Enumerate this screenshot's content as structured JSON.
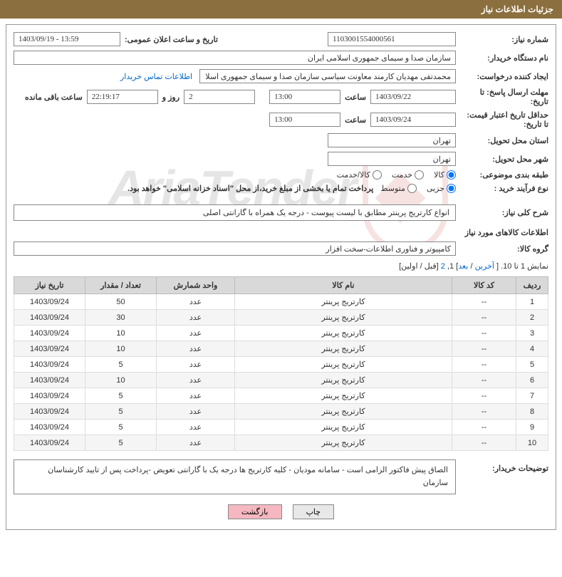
{
  "header": {
    "title": "جزئیات اطلاعات نیاز"
  },
  "fields": {
    "need_number_label": "شماره نیاز:",
    "need_number": "1103001554000561",
    "announce_label": "تاریخ و ساعت اعلان عمومی:",
    "announce_value": "1403/09/19 - 13:59",
    "buyer_org_label": "نام دستگاه خریدار:",
    "buyer_org": "سازمان صدا و سیمای جمهوری اسلامی ایران",
    "requester_label": "ایجاد کننده درخواست:",
    "requester": "محمدتقی مهدیان کارمند معاونت سیاسی سازمان صدا و سیمای جمهوری اسلا",
    "contact_link": "اطلاعات تماس خریدار",
    "deadline_send_label": "مهلت ارسال پاسخ: تا تاریخ:",
    "deadline_send_date": "1403/09/22",
    "time_label": "ساعت",
    "deadline_send_time": "13:00",
    "days_remaining": "2",
    "days_remaining_label": "روز و",
    "time_remaining": "22:19:17",
    "time_remaining_label": "ساعت باقی مانده",
    "min_valid_label": "حداقل تاریخ اعتبار قیمت: تا تاریخ:",
    "min_valid_date": "1403/09/24",
    "min_valid_time": "13:00",
    "delivery_province_label": "استان محل تحویل:",
    "delivery_province": "تهران",
    "delivery_city_label": "شهر محل تحویل:",
    "delivery_city": "تهران",
    "category_label": "طبقه بندی موضوعی:",
    "cat_goods": "کالا",
    "cat_service": "خدمت",
    "cat_goods_service": "کالا/خدمت",
    "purchase_type_label": "نوع فرآیند خرید :",
    "pt_minor": "جزیی",
    "pt_medium": "متوسط",
    "purchase_note": "پرداخت تمام یا بخشی از مبلغ خرید،از محل \"اسناد خزانه اسلامی\" خواهد بود.",
    "general_desc_label": "شرح کلی نیاز:",
    "general_desc": "انواع  کارتریج  پرینتر مطابق با لیست پیوست - درجه یک همراه با گارانتی اصلی",
    "goods_info_title": "اطلاعات کالاهای مورد نیاز",
    "goods_group_label": "گروه کالا:",
    "goods_group": "کامپیوتر و فناوری اطلاعات-سخت افزار",
    "pager_text1": "نمایش 1 تا 10. [ ",
    "pager_last": "آخرین",
    "pager_sep1": " / ",
    "pager_next": "بعد",
    "pager_mid": "] 1, ",
    "pager_p2": "2",
    "pager_text2": " [قبل / اولین]",
    "buyer_notes_label": "توضیحات خریدار:",
    "buyer_notes": "الصاق پیش فاکتور الزامی است - سامانه مودیان - کلیه کارتریج ها  درجه یک با گارانتی تعویض -پرداخت پس از تایید کارشناسان سازمان",
    "btn_print": "چاپ",
    "btn_back": "بازگشت"
  },
  "table": {
    "headers": {
      "row": "ردیف",
      "code": "کد کالا",
      "name": "نام کالا",
      "unit": "واحد شمارش",
      "qty": "تعداد / مقدار",
      "date": "تاریخ نیاز"
    },
    "rows": [
      {
        "n": "1",
        "code": "--",
        "name": "کارتریج پرینتر",
        "unit": "عدد",
        "qty": "50",
        "date": "1403/09/24"
      },
      {
        "n": "2",
        "code": "--",
        "name": "کارتریج پرینتر",
        "unit": "عدد",
        "qty": "30",
        "date": "1403/09/24"
      },
      {
        "n": "3",
        "code": "--",
        "name": "کارتریج پرینتر",
        "unit": "عدد",
        "qty": "10",
        "date": "1403/09/24"
      },
      {
        "n": "4",
        "code": "--",
        "name": "کارتریج پرینتر",
        "unit": "عدد",
        "qty": "10",
        "date": "1403/09/24"
      },
      {
        "n": "5",
        "code": "--",
        "name": "کارتریج پرینتر",
        "unit": "عدد",
        "qty": "5",
        "date": "1403/09/24"
      },
      {
        "n": "6",
        "code": "--",
        "name": "کارتریج پرینتر",
        "unit": "عدد",
        "qty": "10",
        "date": "1403/09/24"
      },
      {
        "n": "7",
        "code": "--",
        "name": "کارتریج پرینتر",
        "unit": "عدد",
        "qty": "5",
        "date": "1403/09/24"
      },
      {
        "n": "8",
        "code": "--",
        "name": "کارتریج پرینتر",
        "unit": "عدد",
        "qty": "5",
        "date": "1403/09/24"
      },
      {
        "n": "9",
        "code": "--",
        "name": "کارتریج پرینتر",
        "unit": "عدد",
        "qty": "5",
        "date": "1403/09/24"
      },
      {
        "n": "10",
        "code": "--",
        "name": "کارتریج پرینتر",
        "unit": "عدد",
        "qty": "5",
        "date": "1403/09/24"
      }
    ]
  },
  "style": {
    "header_bg": "#8b6f3e",
    "th_bg": "#d9d9d9",
    "row_alt_bg": "#f5f5f5",
    "border_color": "#888888",
    "link_color": "#0066cc",
    "btn_back_bg": "#f5b8c0",
    "watermark_red": "#c94a3b"
  }
}
